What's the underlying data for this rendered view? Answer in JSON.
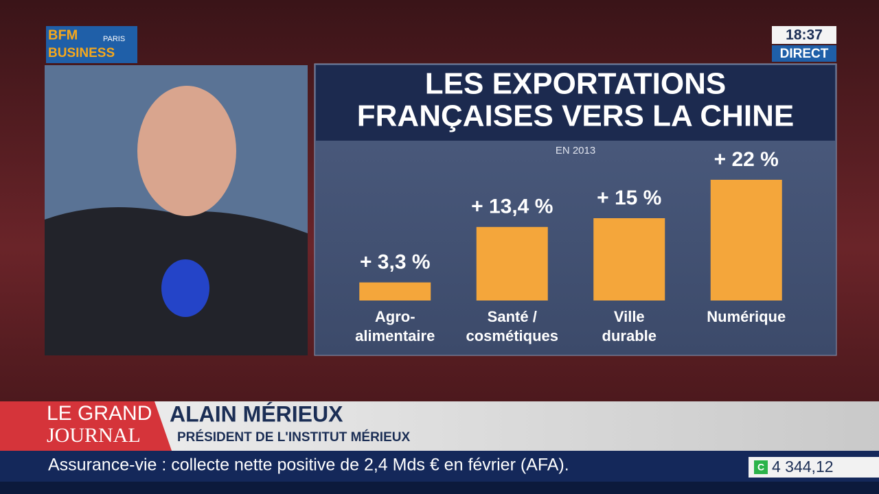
{
  "broadcast": {
    "logo": [
      "BFM",
      "PARIS",
      "BUSINESS"
    ],
    "time": "18:37",
    "live": "DIRECT",
    "show": [
      "LE GRAND",
      "JOURNAL"
    ],
    "guest_name": "ALAIN MÉRIEUX",
    "guest_role": "PRÉSIDENT DE L'INSTITUT MÉRIEUX",
    "ticker": "Assurance-vie : collecte nette positive de 2,4 Mds € en février (AFA).",
    "index": {
      "badge": "C",
      "value": "4 344,12"
    }
  },
  "chart_data": {
    "type": "bar",
    "title": [
      "LES EXPORTATIONS",
      "FRANÇAISES VERS LA CHINE"
    ],
    "subtitle": "EN 2013",
    "categories": [
      [
        "Agro-",
        "alimentaire"
      ],
      [
        "Santé /",
        "cosmétiques"
      ],
      [
        "Ville",
        "durable"
      ],
      [
        "Numérique"
      ]
    ],
    "values": [
      3.3,
      13.4,
      15,
      22
    ],
    "value_labels": [
      "+ 3,3 %",
      "+ 13,4 %",
      "+ 15 %",
      "+ 22 %"
    ],
    "color": "#f4a63b"
  }
}
